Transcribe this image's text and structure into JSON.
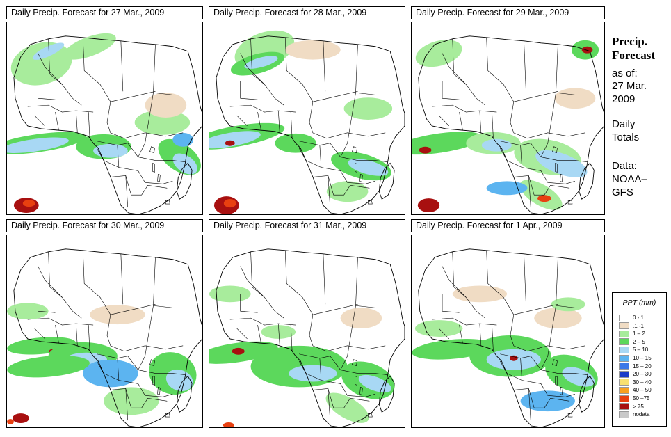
{
  "panels": [
    {
      "title": "Daily Precip. Forecast for  27 Mar., 2009"
    },
    {
      "title": "Daily Precip. Forecast for  28 Mar., 2009"
    },
    {
      "title": "Daily Precip. Forecast for  29 Mar., 2009"
    },
    {
      "title": "Daily Precip. Forecast for  30 Mar., 2009"
    },
    {
      "title": "Daily Precip. Forecast for  31 Mar., 2009"
    },
    {
      "title": "Daily Precip. Forecast for  1 Apr., 2009"
    }
  ],
  "side": {
    "title_line1": "Precip.",
    "title_line2": "Forecast",
    "asof_label": "as of:",
    "asof_date1": "27 Mar.",
    "asof_date2": "2009",
    "totals_line1": "Daily",
    "totals_line2": "Totals",
    "data_line1": "Data:",
    "data_line2": "NOAA–",
    "data_line3": "GFS"
  },
  "legend": {
    "title": "PPT (mm)",
    "items": [
      {
        "label": "0 -.1",
        "color": "#ffffff"
      },
      {
        "label": ".1 -1",
        "color": "#f0dcc4"
      },
      {
        "label": "1 – 2",
        "color": "#a8ec9c"
      },
      {
        "label": "2 – 5",
        "color": "#5cd85c"
      },
      {
        "label": "5 – 10",
        "color": "#a8d8f4"
      },
      {
        "label": "10 – 15",
        "color": "#5cb4f0"
      },
      {
        "label": "15 – 20",
        "color": "#3c78e8"
      },
      {
        "label": "20 – 30",
        "color": "#1c3cc8"
      },
      {
        "label": "30 – 40",
        "color": "#f8e070"
      },
      {
        "label": "40 – 50",
        "color": "#f8a020"
      },
      {
        "label": "50 –75",
        "color": "#e84010"
      },
      {
        "label": "> 75",
        "color": "#a81010"
      },
      {
        "label": "nodata",
        "color": "#c8c8c8"
      }
    ]
  }
}
